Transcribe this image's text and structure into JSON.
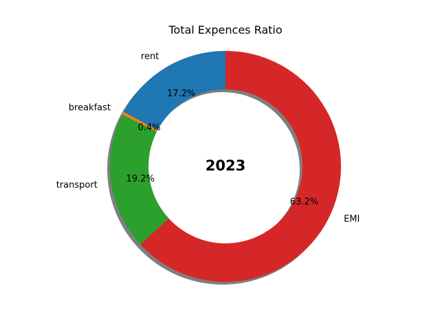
{
  "chart_data": {
    "type": "pie",
    "title": "Total Expences Ratio",
    "center_text": "2023",
    "donut": true,
    "shadow": true,
    "start_angle_deg": 90,
    "direction": "counterclockwise",
    "slices": [
      {
        "label": "rent",
        "percent": "17.2%",
        "value": 17.2,
        "color": "#1f77b4"
      },
      {
        "label": "breakfast",
        "percent": "0.4%",
        "value": 0.4,
        "color": "#ff7f0e"
      },
      {
        "label": "transport",
        "percent": "19.2%",
        "value": 19.2,
        "color": "#2ca02c"
      },
      {
        "label": "EMI",
        "percent": "63.2%",
        "value": 63.2,
        "color": "#d62728"
      }
    ]
  }
}
